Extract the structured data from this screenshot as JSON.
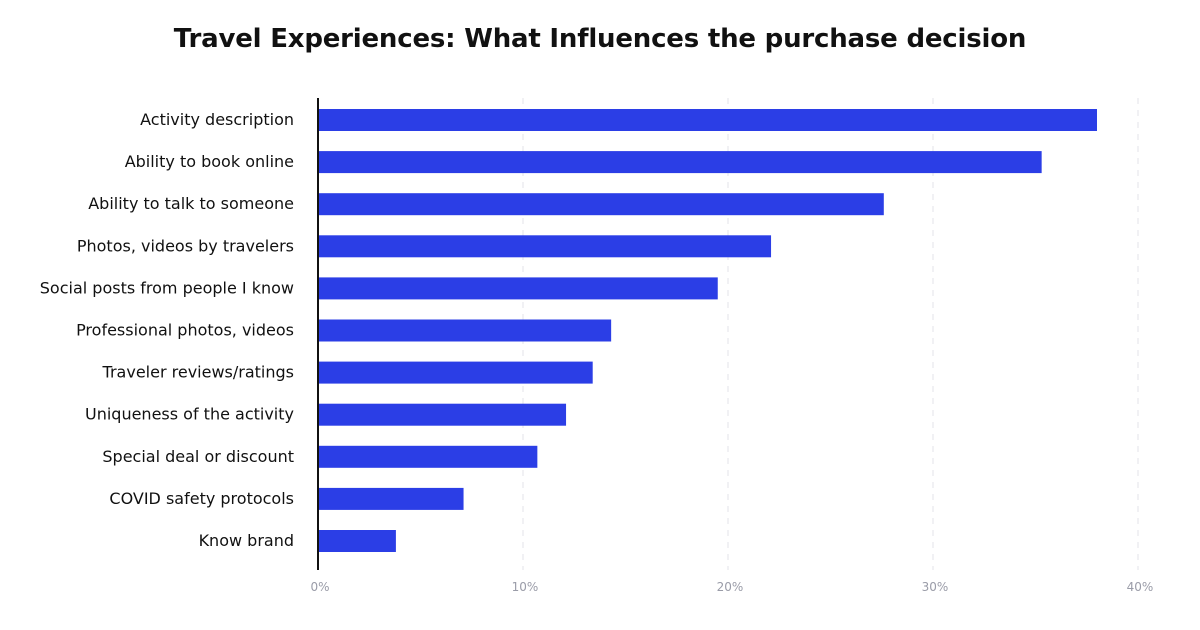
{
  "chart_data": {
    "type": "bar",
    "orientation": "horizontal",
    "title": "Travel Experiences: What Influences the purchase decision",
    "xlabel": "",
    "ylabel": "",
    "categories": [
      "Activity description",
      "Ability to book online",
      "Ability to talk to someone",
      "Photos, videos by travelers",
      "Social posts from people I know",
      "Professional photos, videos",
      "Traveler reviews/ratings",
      "Uniqueness of the activity",
      "Special deal or discount",
      "COVID safety protocols",
      "Know brand"
    ],
    "values": [
      38,
      35.3,
      27.6,
      22.1,
      19.5,
      14.3,
      13.4,
      12.1,
      10.7,
      7.1,
      3.8
    ],
    "unit": "%",
    "xlim": [
      0,
      40
    ],
    "xticks": [
      0,
      10,
      20,
      30,
      40
    ],
    "xtick_labels": [
      "0%",
      "10%",
      "20%",
      "30%",
      "40%"
    ],
    "grid": "vertical dashed",
    "legend": "none",
    "colors": {
      "bar": "#2b3ee6",
      "grid": "#e3e3ea",
      "axis": "#111111",
      "tick_text": "#9a9ca8"
    }
  }
}
